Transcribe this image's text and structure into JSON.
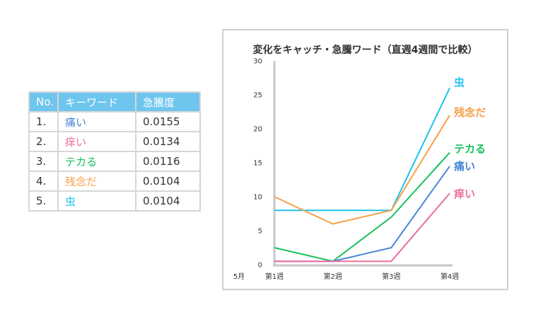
{
  "table": {
    "headers": [
      "No.",
      "キーワード",
      "急騰度"
    ],
    "rows": [
      {
        "no": "1.",
        "keyword": "痛い",
        "score": "0.0155",
        "color": "#4a86d6"
      },
      {
        "no": "2.",
        "keyword": "痒い",
        "score": "0.0134",
        "color": "#ee6fa0"
      },
      {
        "no": "3.",
        "keyword": "テカる",
        "score": "0.0116",
        "color": "#16c15c"
      },
      {
        "no": "4.",
        "keyword": "残念だ",
        "score": "0.0104",
        "color": "#f6a04a"
      },
      {
        "no": "5.",
        "keyword": "虫",
        "score": "0.0104",
        "color": "#1cc3ee"
      }
    ],
    "header_color": "#6ec6ee"
  },
  "chart_data": {
    "type": "line",
    "title": "変化をキャッチ・急騰ワード（直週4週間で比較）",
    "month_label": "5月",
    "categories": [
      "第1週",
      "第2週",
      "第3週",
      "第4週"
    ],
    "ylim": [
      0,
      30
    ],
    "yticks": [
      "0",
      "5",
      "10",
      "15",
      "20",
      "25",
      "30"
    ],
    "grid": false,
    "series": [
      {
        "name": "虫",
        "color": "#1cc3ee",
        "values": [
          8,
          8,
          8,
          26
        ]
      },
      {
        "name": "残念だ",
        "color": "#f6a04a",
        "values": [
          10,
          6,
          8,
          22
        ]
      },
      {
        "name": "テカる",
        "color": "#16c15c",
        "values": [
          2.5,
          0.5,
          7,
          16.5
        ]
      },
      {
        "name": "痛い",
        "color": "#4a86d6",
        "values": [
          0.5,
          0.5,
          2.5,
          14.5
        ]
      },
      {
        "name": "痒い",
        "color": "#ee6fa0",
        "values": [
          0.5,
          0.5,
          0.5,
          10.5
        ]
      }
    ]
  }
}
